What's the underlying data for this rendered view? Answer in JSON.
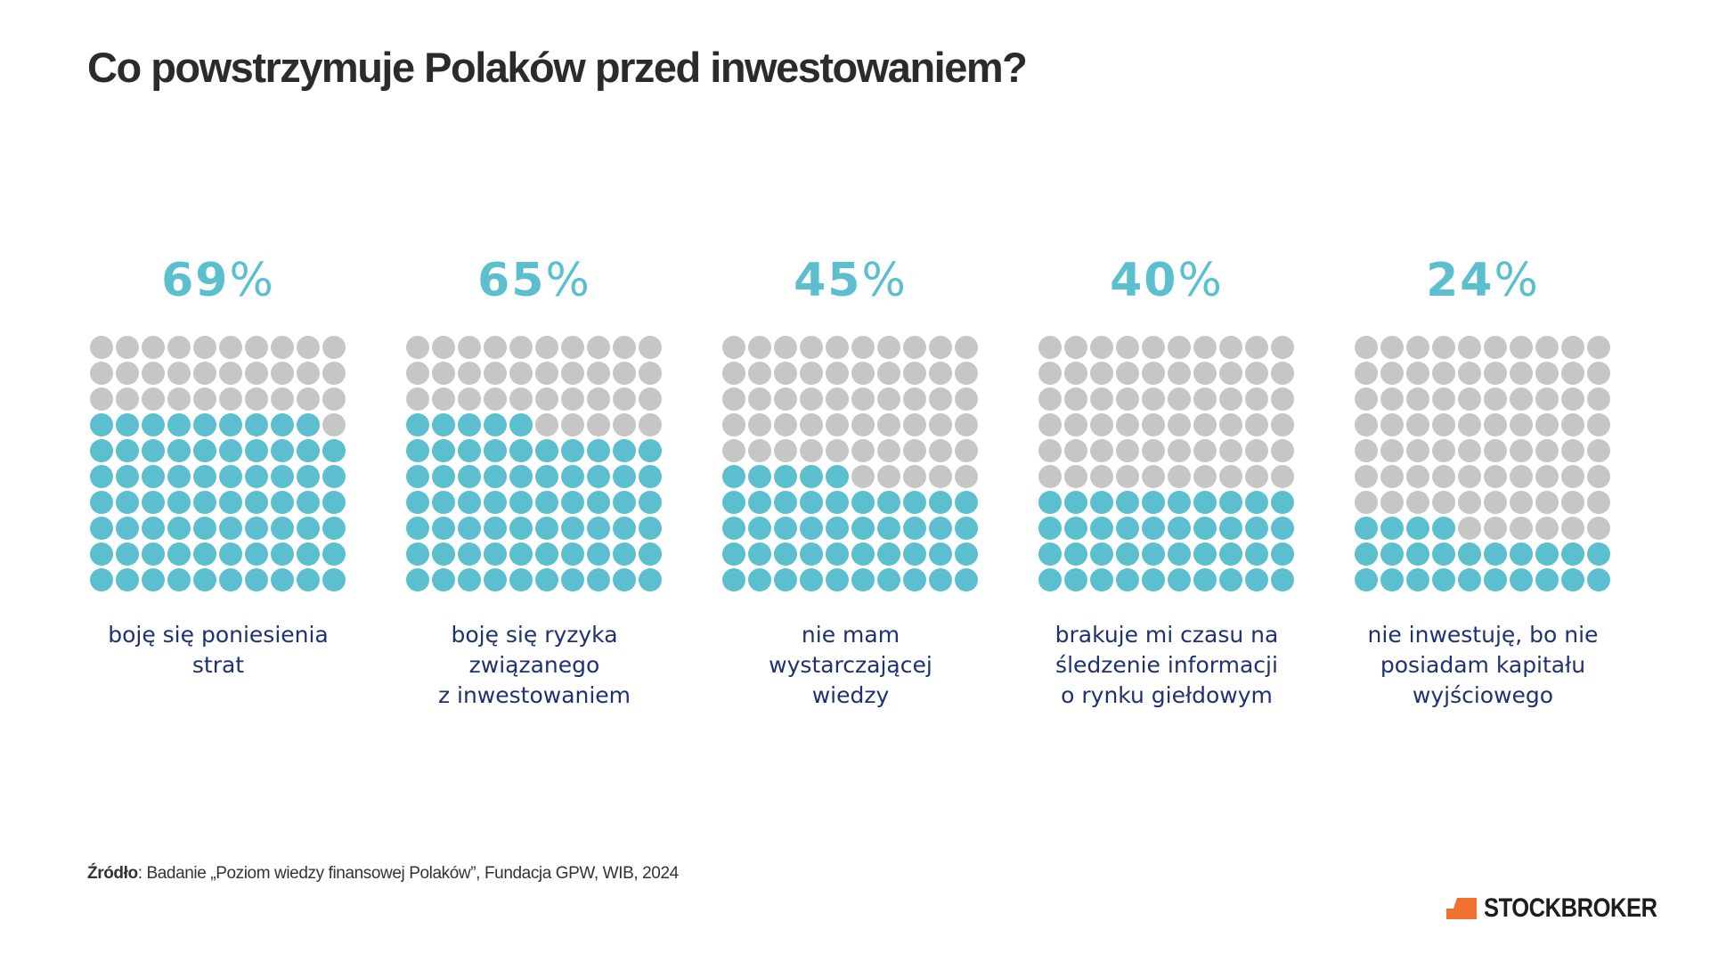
{
  "title": "Co powstrzymuje Polaków przed inwestowaniem?",
  "colors": {
    "filled": "#5bbfd0",
    "empty": "#c6c6c6",
    "label": "#1e3170",
    "logo_accent": "#f07030"
  },
  "chart_data": {
    "type": "waffle",
    "title": "Co powstrzymuje Polaków przed inwestowaniem?",
    "grid": [
      10,
      10
    ],
    "unit": "%",
    "items": [
      {
        "value": 69,
        "value_label": "69",
        "label": "boję się poniesienia\nstrat"
      },
      {
        "value": 65,
        "value_label": "65",
        "label": "boję się ryzyka\nzwiązanego\nz inwestowaniem"
      },
      {
        "value": 45,
        "value_label": "45",
        "label": "nie mam\nwystarczającej\nwiedzy"
      },
      {
        "value": 40,
        "value_label": "40",
        "label": "brakuje mi czasu na\nśledzenie informacji\no rynku giełdowym"
      },
      {
        "value": 24,
        "value_label": "24",
        "label": "nie inwestuję, bo nie\nposiadam kapitału\nwyjściowego"
      }
    ]
  },
  "source": {
    "bold": "Źródło",
    "text": ": Badanie „Poziom wiedzy finansowej Polaków”, Fundacja GPW, WIB, 2024"
  },
  "logo": {
    "text": "STOCKBROKER"
  }
}
